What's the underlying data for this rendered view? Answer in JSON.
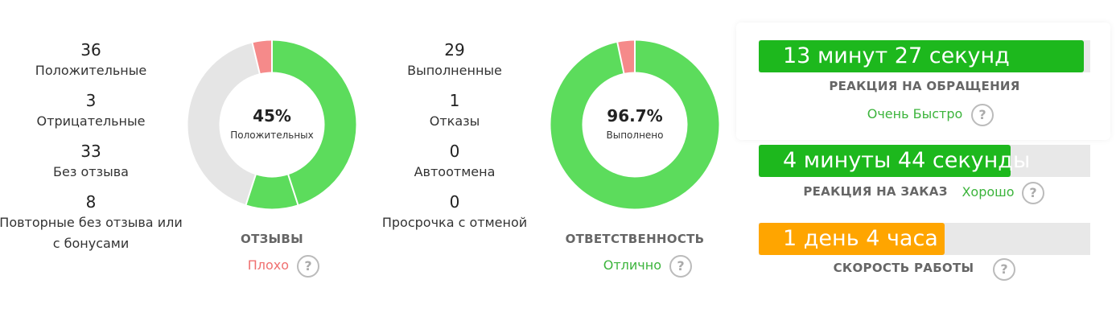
{
  "help": "?",
  "reviews": {
    "stats": [
      {
        "value": 36,
        "label": "Положительные",
        "color": "#5cdc5c"
      },
      {
        "value": 3,
        "label": "Отрицательные",
        "color": "#f58a8a"
      },
      {
        "value": 33,
        "label": "Без отзыва",
        "color": "#e5e5e5"
      },
      {
        "value": 8,
        "label": "Повторные без отзыва или с бонусами",
        "color": "#5cdc5c"
      }
    ],
    "segment_order": [
      0,
      3,
      2,
      1
    ],
    "center": "45%",
    "center_label": "Положительных",
    "title": "ОТЗЫВЫ",
    "rating": "Плохо",
    "rating_color": "#f07070"
  },
  "responsibility": {
    "stats": [
      {
        "value": 29,
        "label": "Выполненные",
        "color": "#5cdc5c"
      },
      {
        "value": 1,
        "label": "Отказы",
        "color": "#f58a8a"
      },
      {
        "value": 0,
        "label": "Автоотмена",
        "color": "#e5e5e5"
      },
      {
        "value": 0,
        "label": "Просрочка с отменой",
        "color": "#e5e5e5"
      }
    ],
    "segment_order": [
      0,
      2,
      3,
      1
    ],
    "center": "96.7%",
    "center_label": "Выполнено",
    "title": "ОТВЕТСТВЕННОСТЬ",
    "rating": "Отлично",
    "rating_color": "#3cb43c"
  },
  "metrics": [
    {
      "value": "13 минут 27 секунд",
      "fill_percent": 98,
      "color": "#1db81d",
      "title": "РЕАКЦИЯ НА ОБРАЩЕНИЯ",
      "rating": "Очень Быстро",
      "rating_color": "#3cb43c"
    },
    {
      "value": "4 минуты 44 секунды",
      "fill_percent": 76,
      "color": "#1db81d",
      "title": "РЕАКЦИЯ НА ЗАКАЗ",
      "rating": "Хорошо",
      "rating_color": "#3cb43c"
    },
    {
      "value": "1 день 4 часа",
      "fill_percent": 56,
      "color": "#ffa500",
      "title": "СКОРОСТЬ РАБОТЫ"
    }
  ]
}
